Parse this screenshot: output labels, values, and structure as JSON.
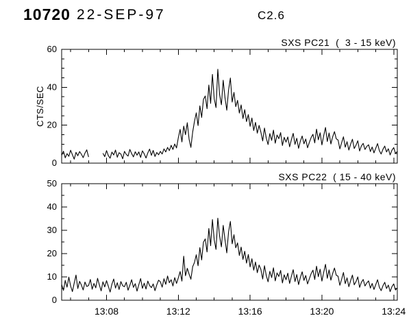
{
  "header": {
    "event_id": "10720",
    "date": "22-SEP-97",
    "flare_class": "C2.6"
  },
  "colors": {
    "line": "#000000",
    "axis": "#000000",
    "background": "#ffffff"
  },
  "chart_data": [
    {
      "type": "line",
      "title": "SXS PC21  (  3 - 15 keV)",
      "ylabel": "CTS/SEC",
      "ylim": [
        0,
        60
      ],
      "yticks": [
        0,
        20,
        40,
        60
      ],
      "y_minor_step": 5,
      "xlim": [
        5.5,
        24.2
      ],
      "x_minor_step": 1,
      "xticks": [
        {
          "t": 8,
          "label": "13:08"
        },
        {
          "t": 12,
          "label": "13:12"
        },
        {
          "t": 16,
          "label": "13:16"
        },
        {
          "t": 20,
          "label": "13:20"
        },
        {
          "t": 24,
          "label": "13:24"
        }
      ],
      "x_axis_unit": "time (13:MM)",
      "x_start": 5.5,
      "x_step": 0.1,
      "values": [
        4.1,
        6.3,
        2.8,
        5.0,
        3.6,
        6.8,
        4.4,
        2.1,
        5.7,
        3.9,
        6.1,
        4.7,
        2.9,
        5.3,
        7.0,
        3.2,
        null,
        null,
        null,
        null,
        null,
        null,
        null,
        5.2,
        3.4,
        6.6,
        4.0,
        2.6,
        5.8,
        4.3,
        6.9,
        3.1,
        5.5,
        4.8,
        2.3,
        6.2,
        4.6,
        3.7,
        7.2,
        5.0,
        3.3,
        6.0,
        4.2,
        5.9,
        3.0,
        6.5,
        4.9,
        2.7,
        5.4,
        7.4,
        4.1,
        6.7,
        3.5,
        5.6,
        4.4,
        6.2,
        4.8,
        7.5,
        5.9,
        8.3,
        6.6,
        9.4,
        7.2,
        10.1,
        8.0,
        13.4,
        17.8,
        11.2,
        19.5,
        15.0,
        21.3,
        12.6,
        8.3,
        16.4,
        22.0,
        26.5,
        19.8,
        30.2,
        24.1,
        33.6,
        35.4,
        28.7,
        41.2,
        31.5,
        46.8,
        33.9,
        29.3,
        49.5,
        36.1,
        30.8,
        43.7,
        34.5,
        27.9,
        38.6,
        44.9,
        32.2,
        37.3,
        29.8,
        33.1,
        26.4,
        30.7,
        23.5,
        28.2,
        21.9,
        25.6,
        19.4,
        23.8,
        17.2,
        21.5,
        15.8,
        19.9,
        16.3,
        11.7,
        18.5,
        13.2,
        9.8,
        15.6,
        12.0,
        17.4,
        10.5,
        14.8,
        12.9,
        16.1,
        9.3,
        13.6,
        11.1,
        13.8,
        8.6,
        12.4,
        15.7,
        9.9,
        13.1,
        7.8,
        11.6,
        14.3,
        10.2,
        12.7,
        8.1,
        10.9,
        13.5,
        15.2,
        10.7,
        17.9,
        12.3,
        16.0,
        9.6,
        14.5,
        18.8,
        11.4,
        15.9,
        10.1,
        13.9,
        16.6,
        12.8,
        12.2,
        7.5,
        10.8,
        13.9,
        8.4,
        11.3,
        6.9,
        10.0,
        12.6,
        7.7,
        9.5,
        11.8,
        6.4,
        9.1,
        10.4,
        7.2,
        8.8,
        9.7,
        6.1,
        8.5,
        5.4,
        7.9,
        10.3,
        6.6,
        4.8,
        7.3,
        9.0,
        5.9,
        7.6,
        4.3,
        6.8,
        8.2,
        5.1,
        6.2
      ]
    },
    {
      "type": "line",
      "title": "SXS PC22  ( 15 - 40 keV)",
      "ylabel": "",
      "ylim": [
        0,
        50
      ],
      "yticks": [
        0,
        10,
        20,
        30,
        40,
        50
      ],
      "y_minor_step": 5,
      "xlim": [
        5.5,
        24.2
      ],
      "x_minor_step": 1,
      "xticks": [
        {
          "t": 8,
          "label": "13:08"
        },
        {
          "t": 12,
          "label": "13:12"
        },
        {
          "t": 16,
          "label": "13:16"
        },
        {
          "t": 20,
          "label": "13:20"
        },
        {
          "t": 24,
          "label": "13:24"
        }
      ],
      "x_axis_unit": "time (13:MM)",
      "x_start": 5.5,
      "x_step": 0.1,
      "values": [
        6.8,
        4.2,
        8.5,
        5.6,
        9.9,
        6.1,
        3.7,
        7.4,
        10.8,
        5.0,
        8.1,
        6.5,
        4.4,
        7.8,
        5.9,
        6.3,
        8.9,
        4.7,
        7.2,
        5.3,
        9.4,
        6.6,
        4.0,
        7.9,
        5.7,
        8.4,
        6.0,
        3.5,
        6.9,
        9.1,
        5.2,
        7.5,
        4.6,
        8.0,
        6.2,
        5.8,
        7.7,
        4.3,
        6.4,
        8.8,
        5.5,
        7.1,
        3.9,
        6.7,
        9.3,
        5.1,
        7.3,
        4.8,
        8.2,
        6.3,
        5.4,
        7.0,
        4.1,
        6.6,
        8.6,
        7.9,
        5.6,
        9.2,
        6.8,
        10.4,
        7.5,
        8.8,
        6.1,
        9.7,
        7.2,
        9.6,
        12.3,
        8.2,
        18.9,
        10.5,
        13.7,
        11.2,
        9.0,
        14.4,
        16.2,
        19.5,
        14.8,
        22.6,
        17.3,
        24.9,
        26.3,
        20.7,
        30.8,
        23.4,
        34.6,
        25.9,
        21.8,
        35.2,
        27.5,
        22.9,
        32.1,
        26.0,
        20.3,
        29.4,
        33.8,
        24.2,
        28.1,
        22.5,
        24.6,
        19.2,
        22.8,
        17.5,
        21.0,
        15.9,
        19.6,
        14.3,
        17.8,
        12.9,
        16.4,
        11.8,
        15.1,
        13.2,
        9.1,
        14.8,
        10.6,
        7.9,
        12.4,
        9.7,
        13.9,
        8.3,
        11.7,
        10.2,
        12.8,
        7.4,
        10.9,
        8.8,
        11.6,
        7.2,
        10.3,
        13.1,
        8.0,
        11.0,
        6.7,
        9.8,
        12.2,
        8.5,
        10.6,
        7.0,
        9.2,
        11.4,
        12.9,
        8.9,
        14.6,
        10.1,
        13.3,
        8.2,
        12.0,
        15.4,
        9.4,
        13.0,
        8.6,
        11.5,
        13.8,
        10.7,
        10.3,
        6.4,
        9.0,
        11.9,
        7.1,
        9.6,
        5.8,
        8.4,
        10.8,
        6.6,
        8.0,
        10.0,
        5.5,
        7.7,
        8.9,
        6.1,
        7.4,
        8.3,
        5.2,
        7.2,
        4.6,
        6.7,
        8.8,
        5.6,
        4.1,
        6.2,
        7.7,
        5.0,
        6.5,
        3.7,
        5.8,
        7.0,
        4.4,
        5.3
      ]
    }
  ]
}
